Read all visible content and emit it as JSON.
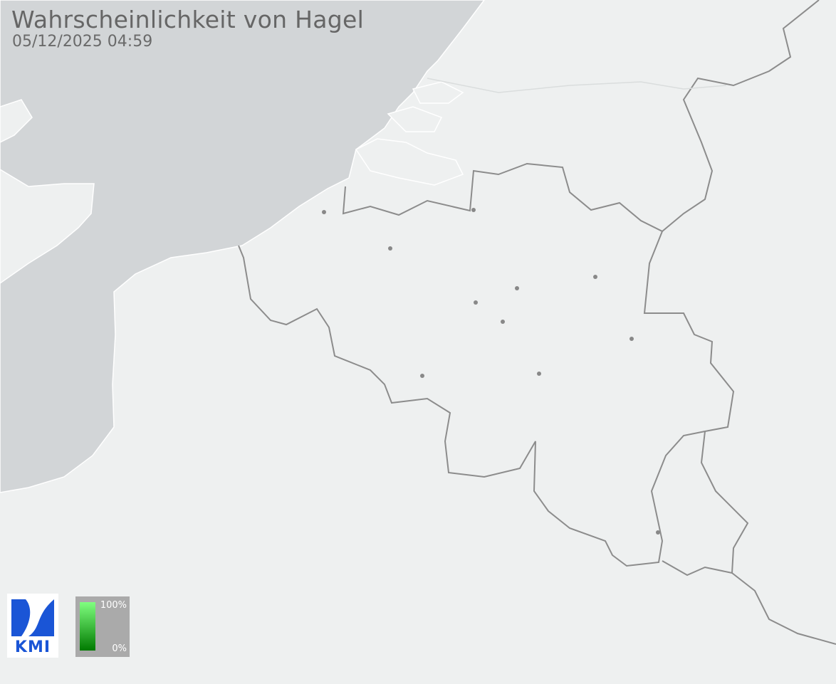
{
  "header": {
    "title": "Wahrscheinlichkeit von Hagel",
    "timestamp": "05/12/2025 04:59"
  },
  "logo": {
    "text": "KMI"
  },
  "legend": {
    "max_label": "100%",
    "min_label": "0%",
    "color_high": "#80ff80",
    "color_low": "#007a00"
  },
  "colors": {
    "sea": "#d2d5d7",
    "land": "#eef0f0",
    "border": "#8c8c8c",
    "city": "#888888"
  }
}
